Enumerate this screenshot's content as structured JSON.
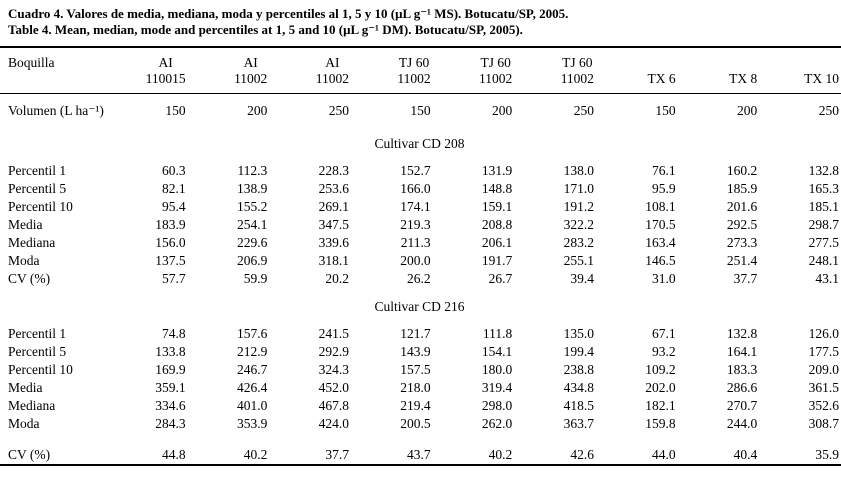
{
  "colors": {
    "text": "#000000",
    "background": "#ffffff"
  },
  "caption": {
    "line1": "Cuadro 4. Valores de media, mediana, moda y percentiles al 1, 5 y 10 (μL g⁻¹ MS). Botucatu/SP, 2005.",
    "line2": "Table 4. Mean, median, mode and percentiles at 1, 5 and 10 (μL g⁻¹ DM). Botucatu/SP, 2005)."
  },
  "table": {
    "corner_label": "Boquilla",
    "col_headers": [
      {
        "line1": "AI",
        "line2": "110015"
      },
      {
        "line1": "AI",
        "line2": "11002"
      },
      {
        "line1": "AI",
        "line2": "11002"
      },
      {
        "line1": "TJ 60",
        "line2": "11002"
      },
      {
        "line1": "TJ 60",
        "line2": "11002"
      },
      {
        "line1": "TJ 60",
        "line2": "11002"
      },
      {
        "line1": "",
        "line2": "TX 6"
      },
      {
        "line1": "",
        "line2": "TX 8"
      },
      {
        "line1": "",
        "line2": "TX 10"
      }
    ],
    "volume_row": {
      "label": "Volumen (L ha⁻¹)",
      "values": [
        "150",
        "200",
        "250",
        "150",
        "200",
        "250",
        "150",
        "200",
        "250"
      ]
    },
    "sections": [
      {
        "title": "Cultivar CD 208",
        "rows": [
          {
            "label": "Percentil 1",
            "values": [
              "60.3",
              "112.3",
              "228.3",
              "152.7",
              "131.9",
              "138.0",
              "76.1",
              "160.2",
              "132.8"
            ]
          },
          {
            "label": "Percentil 5",
            "values": [
              "82.1",
              "138.9",
              "253.6",
              "166.0",
              "148.8",
              "171.0",
              "95.9",
              "185.9",
              "165.3"
            ]
          },
          {
            "label": "Percentil 10",
            "values": [
              "95.4",
              "155.2",
              "269.1",
              "174.1",
              "159.1",
              "191.2",
              "108.1",
              "201.6",
              "185.1"
            ]
          },
          {
            "label": "Media",
            "values": [
              "183.9",
              "254.1",
              "347.5",
              "219.3",
              "208.8",
              "322.2",
              "170.5",
              "292.5",
              "298.7"
            ]
          },
          {
            "label": "Mediana",
            "values": [
              "156.0",
              "229.6",
              "339.6",
              "211.3",
              "206.1",
              "283.2",
              "163.4",
              "273.3",
              "277.5"
            ]
          },
          {
            "label": "Moda",
            "values": [
              "137.5",
              "206.9",
              "318.1",
              "200.0",
              "191.7",
              "255.1",
              "146.5",
              "251.4",
              "248.1"
            ]
          },
          {
            "label": "CV (%)",
            "values": [
              "57.7",
              "59.9",
              "20.2",
              "26.2",
              "26.7",
              "39.4",
              "31.0",
              "37.7",
              "43.1"
            ]
          }
        ]
      },
      {
        "title": "Cultivar CD 216",
        "rows": [
          {
            "label": "Percentil 1",
            "values": [
              "74.8",
              "157.6",
              "241.5",
              "121.7",
              "111.8",
              "135.0",
              "67.1",
              "132.8",
              "126.0"
            ]
          },
          {
            "label": "Percentil 5",
            "values": [
              "133.8",
              "212.9",
              "292.9",
              "143.9",
              "154.1",
              "199.4",
              "93.2",
              "164.1",
              "177.5"
            ]
          },
          {
            "label": "Percentil 10",
            "values": [
              "169.9",
              "246.7",
              "324.3",
              "157.5",
              "180.0",
              "238.8",
              "109.2",
              "183.3",
              "209.0"
            ]
          },
          {
            "label": "Media",
            "values": [
              "359.1",
              "426.4",
              "452.0",
              "218.0",
              "319.4",
              "434.8",
              "202.0",
              "286.6",
              "361.5"
            ]
          },
          {
            "label": "Mediana",
            "values": [
              "334.6",
              "401.0",
              "467.8",
              "219.4",
              "298.0",
              "418.5",
              "182.1",
              "270.7",
              "352.6"
            ]
          },
          {
            "label": "Moda",
            "values": [
              "284.3",
              "353.9",
              "424.0",
              "200.5",
              "262.0",
              "363.7",
              "159.8",
              "244.0",
              "308.7"
            ]
          },
          {
            "label": "CV (%)",
            "values": [
              "44.8",
              "40.2",
              "37.7",
              "43.7",
              "40.2",
              "42.6",
              "44.0",
              "40.4",
              "35.9"
            ],
            "gap_before": true
          }
        ]
      }
    ]
  }
}
